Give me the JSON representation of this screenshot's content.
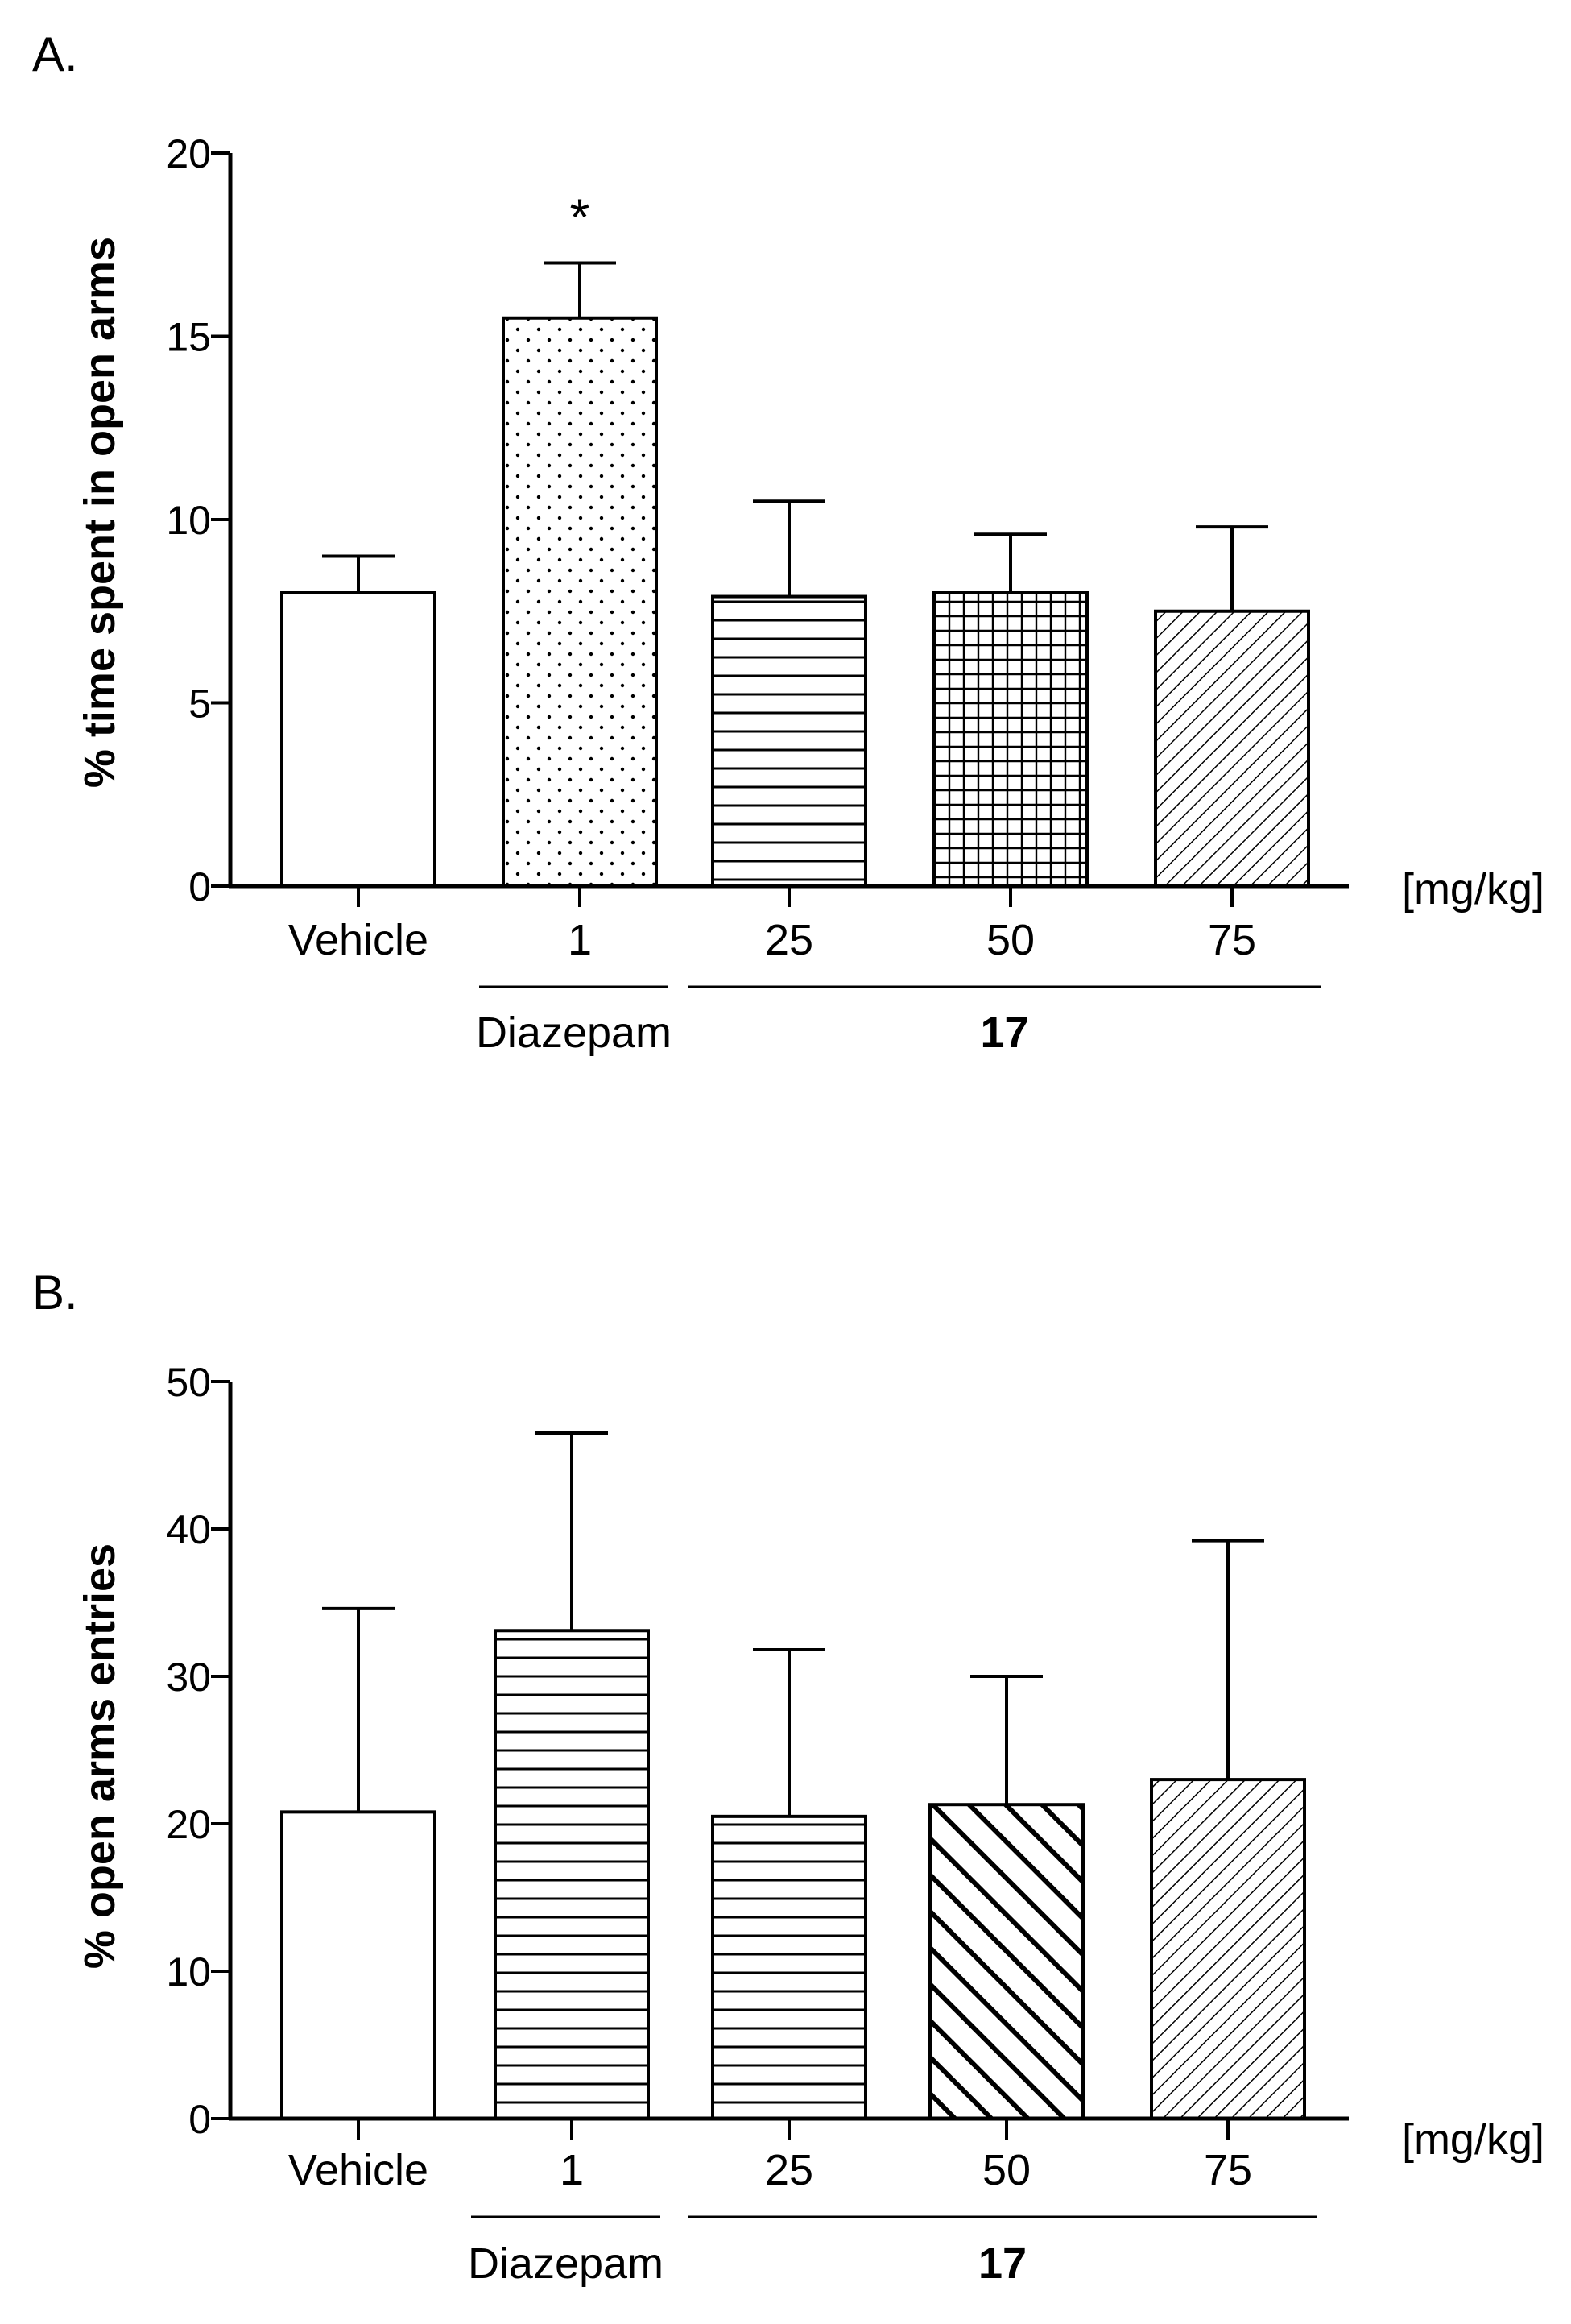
{
  "colors": {
    "ink": "#000000",
    "fill": "#ffffff"
  },
  "chart_data": [
    {
      "type": "bar",
      "panel_label": "A.",
      "ylabel": "% time spent in open arms",
      "unit_label": "[mg/kg]",
      "ylim": [
        0,
        20
      ],
      "yticks": [
        0,
        5,
        10,
        15,
        20
      ],
      "categories": [
        "Vehicle",
        "1",
        "25",
        "50",
        "75"
      ],
      "values": [
        8.0,
        15.5,
        7.9,
        8.0,
        7.5
      ],
      "errors": [
        1.0,
        1.5,
        2.6,
        1.6,
        2.3
      ],
      "patterns": [
        "none",
        "dots",
        "hlines",
        "grid",
        "diag-fine"
      ],
      "annotations": [
        {
          "category": "1",
          "text": "*"
        }
      ],
      "groups": [
        {
          "label": "Diazepam",
          "categories": [
            "1"
          ],
          "bold": false
        },
        {
          "label": "17",
          "categories": [
            "25",
            "50",
            "75"
          ],
          "bold": true
        }
      ]
    },
    {
      "type": "bar",
      "panel_label": "B.",
      "ylabel": "% open arms entries",
      "unit_label": "[mg/kg]",
      "ylim": [
        0,
        50
      ],
      "yticks": [
        0,
        10,
        20,
        30,
        40,
        50
      ],
      "categories": [
        "Vehicle",
        "1",
        "25",
        "50",
        "75"
      ],
      "values": [
        20.8,
        33.1,
        20.5,
        21.3,
        23.0
      ],
      "errors": [
        13.8,
        13.4,
        11.3,
        8.7,
        16.2
      ],
      "patterns": [
        "none",
        "hlines",
        "hlines",
        "diag-bold",
        "diag-fine"
      ],
      "annotations": [],
      "groups": [
        {
          "label": "Diazepam",
          "categories": [
            "1"
          ],
          "bold": false
        },
        {
          "label": "17",
          "categories": [
            "25",
            "50",
            "75"
          ],
          "bold": true
        }
      ]
    }
  ]
}
